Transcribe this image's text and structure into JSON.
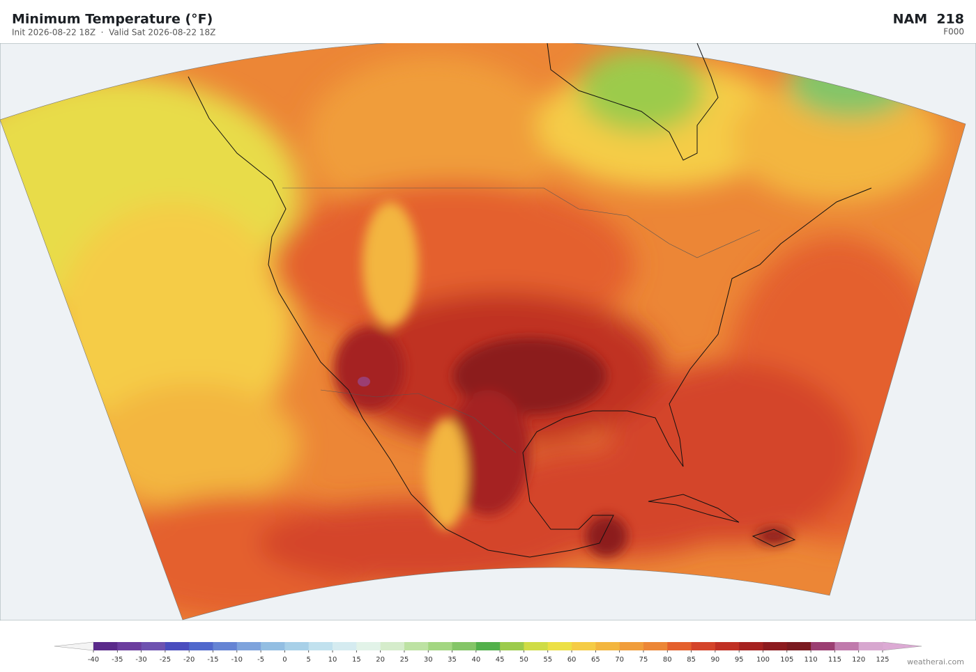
{
  "header": {
    "title": "Minimum Temperature  (°F)",
    "subtitle": "Init 2026-08-22 18Z  ·  Valid Sat 2026-08-22 18Z",
    "model": "NAM  218",
    "forecast_hour": "F000"
  },
  "colorbar": {
    "range": [
      -40,
      125
    ],
    "ticks": [
      -40,
      -35,
      -30,
      -25,
      -20,
      -15,
      -10,
      -5,
      0,
      5,
      10,
      15,
      20,
      25,
      30,
      35,
      40,
      45,
      50,
      55,
      60,
      65,
      70,
      75,
      80,
      85,
      90,
      95,
      100,
      105,
      110,
      115,
      120,
      125
    ],
    "colors": [
      "#5a2a8a",
      "#6b3d9e",
      "#6e52b0",
      "#4a4dbe",
      "#5068cc",
      "#6584d4",
      "#7ea3dc",
      "#93bee2",
      "#a8d0e8",
      "#c1e1ee",
      "#d5ebf0",
      "#e2f3e8",
      "#d5eccb",
      "#bde2a3",
      "#a3d681",
      "#84c567",
      "#52b04b",
      "#9ccb4c",
      "#cfdc46",
      "#ece045",
      "#f5cc46",
      "#f3b63f",
      "#f09d3b",
      "#ec8636",
      "#e4602d",
      "#d4442a",
      "#c03024",
      "#a52220",
      "#8c1b1f",
      "#7a1a20",
      "#9b3e72",
      "#c07aac",
      "#d7a7cf"
    ],
    "under_color": "#f4f4f4",
    "over_color": "#dcaad4"
  },
  "footer": {
    "credit": "weatherai.com"
  }
}
